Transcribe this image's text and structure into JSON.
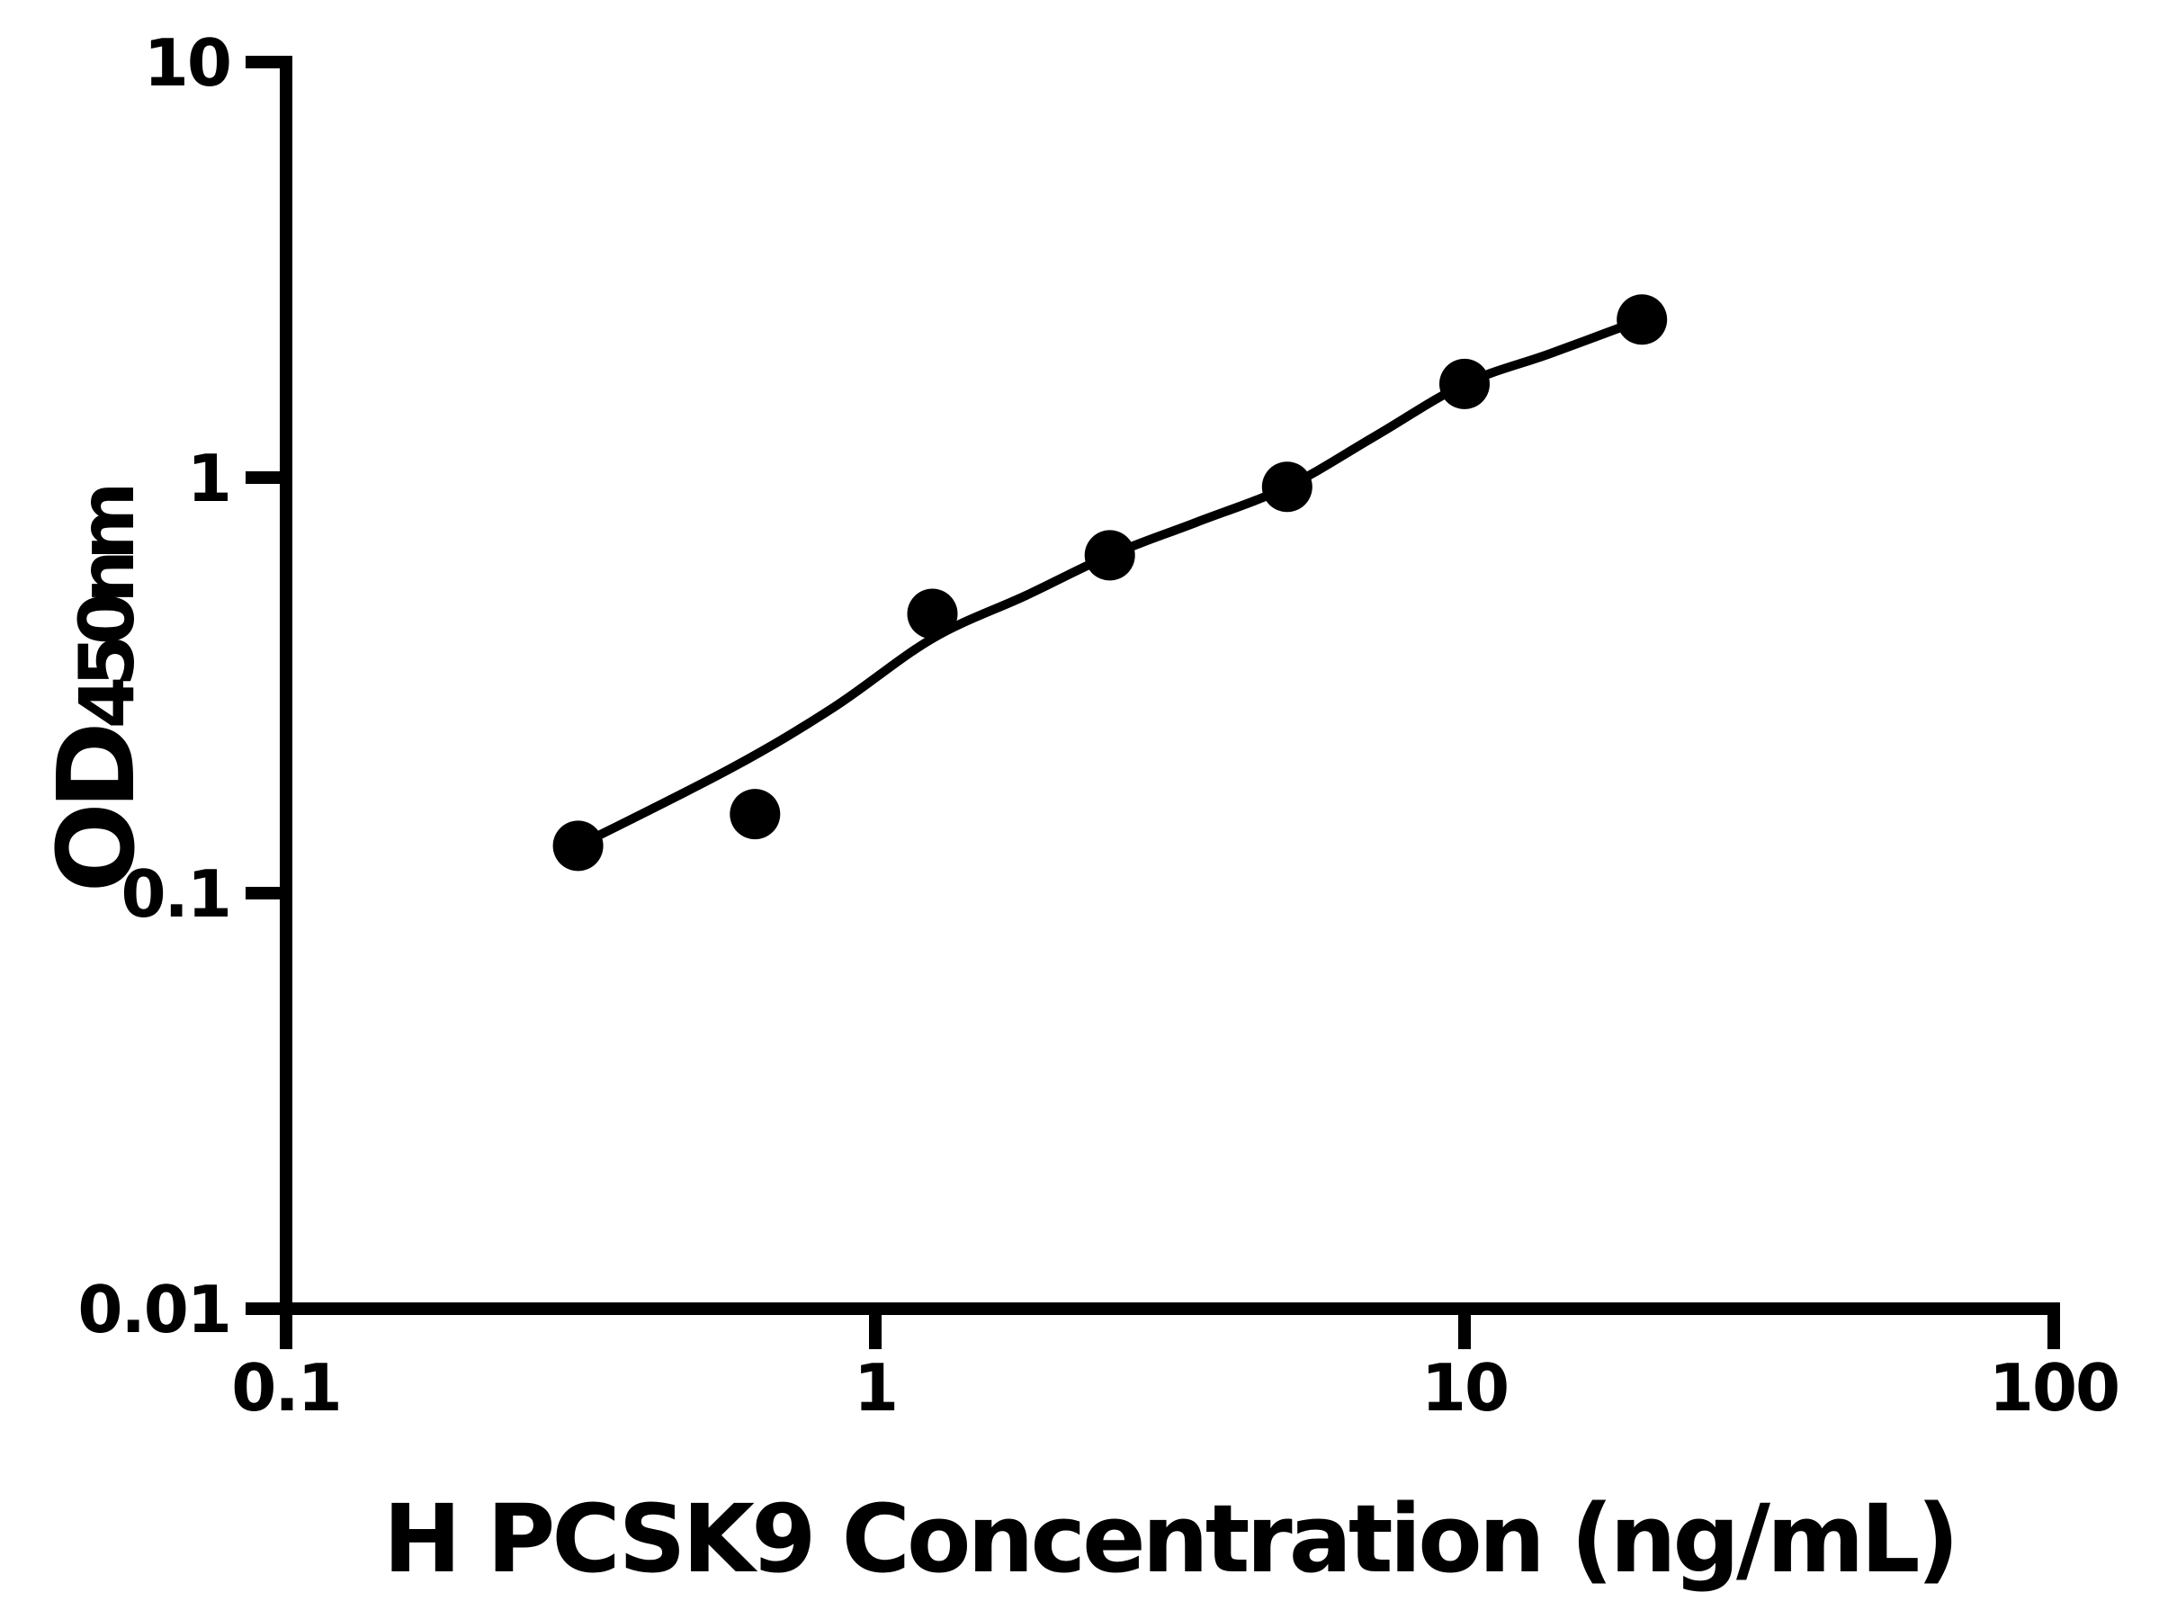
{
  "chart_data": {
    "type": "scatter",
    "title": "",
    "xlabel": "H PCSK9 Concentration (ng/mL)",
    "ylabel": "OD450nm",
    "ylabel_main": "OD",
    "ylabel_sub": "450nm",
    "x_scale": "log",
    "y_scale": "log",
    "xlim": [
      0.1,
      100
    ],
    "ylim": [
      0.01,
      10
    ],
    "grid": false,
    "legend": "none",
    "x_ticks": [
      {
        "value": 0.1,
        "label": "0.1"
      },
      {
        "value": 1,
        "label": "1"
      },
      {
        "value": 10,
        "label": "10"
      },
      {
        "value": 100,
        "label": "100"
      }
    ],
    "y_ticks": [
      {
        "value": 0.01,
        "label": "0.01"
      },
      {
        "value": 0.1,
        "label": "0.1"
      },
      {
        "value": 1,
        "label": "1"
      },
      {
        "value": 10,
        "label": "10"
      }
    ],
    "series": [
      {
        "marker": "filled-circle",
        "color": "#000000",
        "x": [
          0.313,
          0.625,
          1.25,
          2.5,
          5,
          10,
          20
        ],
        "y": [
          0.13,
          0.155,
          0.47,
          0.65,
          0.95,
          1.68,
          2.4
        ]
      }
    ],
    "fit_curve": {
      "color": "#000000",
      "x": [
        0.313,
        0.57,
        0.85,
        1.25,
        1.8,
        2.5,
        3.5,
        5,
        7,
        10,
        14,
        20
      ],
      "y": [
        0.13,
        0.2,
        0.28,
        0.41,
        0.52,
        0.65,
        0.78,
        0.95,
        1.25,
        1.68,
        1.99,
        2.4
      ]
    },
    "colors": {
      "foreground": "#000000",
      "background": "#ffffff"
    }
  }
}
